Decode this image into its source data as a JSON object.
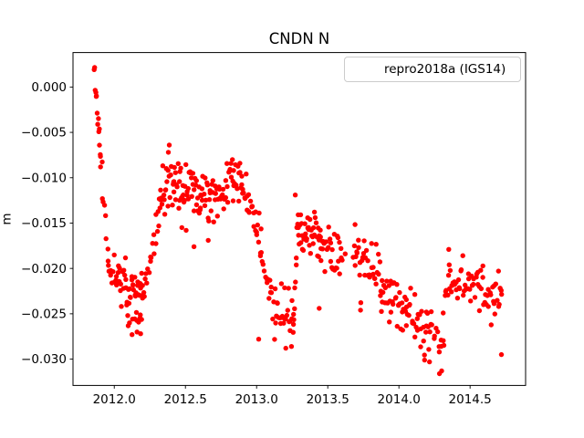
{
  "chart_data": {
    "type": "scatter",
    "title": "CNDN N",
    "xlabel": "",
    "ylabel": "m",
    "legend_position": "upper right",
    "grid": false,
    "xlim": [
      2011.71,
      2014.89
    ],
    "ylim": [
      -0.0329,
      0.0038
    ],
    "clamp": [
      -0.032,
      0.0028
    ],
    "x_ticks": [
      {
        "v": 2012.0,
        "label": "2012.0"
      },
      {
        "v": 2012.5,
        "label": "2012.5"
      },
      {
        "v": 2013.0,
        "label": "2013.0"
      },
      {
        "v": 2013.5,
        "label": "2013.5"
      },
      {
        "v": 2014.0,
        "label": "2014.0"
      },
      {
        "v": 2014.5,
        "label": "2014.5"
      }
    ],
    "y_ticks": [
      {
        "v": 0.0,
        "label": "0.000"
      },
      {
        "v": -0.005,
        "label": "−0.005"
      },
      {
        "v": -0.01,
        "label": "−0.010"
      },
      {
        "v": -0.015,
        "label": "−0.015"
      },
      {
        "v": -0.02,
        "label": "−0.020"
      },
      {
        "v": -0.025,
        "label": "−0.025"
      },
      {
        "v": -0.03,
        "label": "−0.030"
      }
    ],
    "marker": {
      "color": "#ff0000",
      "radius": 2.7
    },
    "axis_color": "#000000",
    "series": [
      {
        "name": "repro2018a (IGS14)",
        "seed": 11,
        "segments": [
          [
            2011.858,
            2011.905,
            0.0026,
            -0.008,
            14,
            0.0006
          ],
          [
            2011.905,
            2011.96,
            -0.009,
            -0.0185,
            9,
            0.0008
          ],
          [
            2011.96,
            2012.03,
            -0.0195,
            -0.021,
            14,
            0.001
          ],
          [
            2012.03,
            2012.2,
            -0.021,
            -0.0235,
            42,
            0.0014
          ],
          [
            2012.1,
            2012.2,
            -0.025,
            -0.0262,
            8,
            0.0006
          ],
          [
            2012.2,
            2012.32,
            -0.0235,
            -0.014,
            20,
            0.0013
          ],
          [
            2012.32,
            2012.42,
            -0.012,
            -0.0098,
            24,
            0.0013
          ],
          [
            2012.42,
            2012.62,
            -0.0105,
            -0.0122,
            46,
            0.0013
          ],
          [
            2012.62,
            2012.9,
            -0.0122,
            -0.01,
            60,
            0.0013
          ],
          [
            2012.9,
            2013.03,
            -0.0112,
            -0.0168,
            26,
            0.0013
          ],
          [
            2013.03,
            2013.1,
            -0.0185,
            -0.0235,
            12,
            0.0011
          ],
          [
            2013.1,
            2013.26,
            -0.0242,
            -0.0258,
            30,
            0.0013
          ],
          [
            2013.258,
            2013.292,
            -0.0265,
            -0.014,
            10,
            0.0007
          ],
          [
            2013.292,
            2013.45,
            -0.015,
            -0.0172,
            40,
            0.0012
          ],
          [
            2013.45,
            2013.6,
            -0.0175,
            -0.019,
            28,
            0.0014
          ],
          [
            2013.6,
            2013.68,
            -0.0185,
            -0.0185,
            3,
            0.001
          ],
          [
            2013.68,
            2013.87,
            -0.0185,
            -0.0212,
            36,
            0.0013
          ],
          [
            2013.87,
            2014.05,
            -0.0222,
            -0.0248,
            36,
            0.0013
          ],
          [
            2014.05,
            2014.22,
            -0.025,
            -0.0272,
            30,
            0.0014
          ],
          [
            2014.22,
            2014.32,
            -0.0262,
            -0.0292,
            13,
            0.0012
          ],
          [
            2014.315,
            2014.36,
            -0.0242,
            -0.0198,
            8,
            0.0008
          ],
          [
            2014.36,
            2014.725,
            -0.0215,
            -0.0232,
            64,
            0.0013
          ]
        ],
        "outliers": [
          [
            2012.125,
            -0.0273
          ],
          [
            2012.16,
            -0.027
          ],
          [
            2012.185,
            -0.0272
          ],
          [
            2012.38,
            -0.0072
          ],
          [
            2012.475,
            -0.0155
          ],
          [
            2012.505,
            -0.0158
          ],
          [
            2012.56,
            -0.0176
          ],
          [
            2012.66,
            -0.0169
          ],
          [
            2012.83,
            -0.008
          ],
          [
            2013.015,
            -0.0278
          ],
          [
            2013.205,
            -0.0288
          ],
          [
            2013.245,
            -0.0286
          ],
          [
            2013.272,
            -0.0119
          ],
          [
            2013.44,
            -0.0244
          ],
          [
            2013.73,
            -0.0246
          ],
          [
            2014.18,
            -0.0301
          ],
          [
            2014.215,
            -0.0303
          ],
          [
            2014.285,
            -0.0316
          ],
          [
            2014.3,
            -0.0313
          ],
          [
            2014.35,
            -0.0179
          ],
          [
            2014.72,
            -0.0295
          ]
        ]
      }
    ]
  }
}
